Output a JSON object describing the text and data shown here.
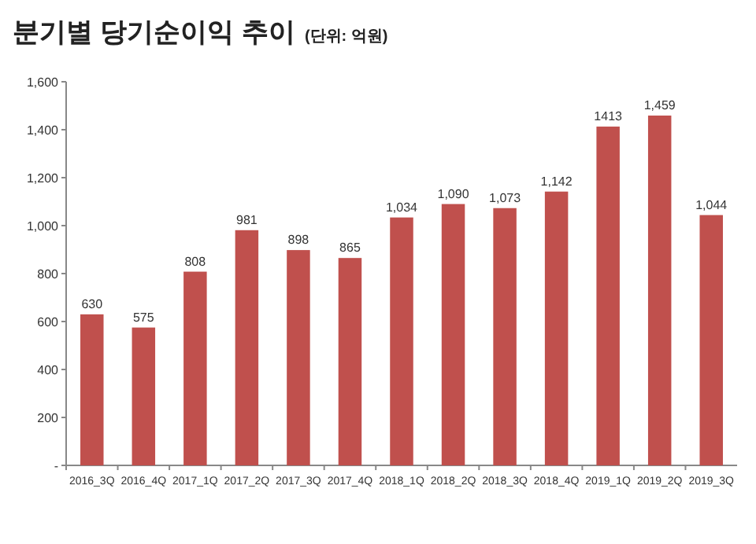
{
  "chart_data": {
    "type": "bar",
    "title": "분기별 당기순이익 추이",
    "subtitle": "(단위: 억원)",
    "categories": [
      "2016_3Q",
      "2016_4Q",
      "2017_1Q",
      "2017_2Q",
      "2017_3Q",
      "2017_4Q",
      "2018_1Q",
      "2018_2Q",
      "2018_3Q",
      "2018_4Q",
      "2019_1Q",
      "2019_2Q",
      "2019_3Q"
    ],
    "values": [
      630,
      575,
      808,
      981,
      898,
      865,
      1034,
      1090,
      1073,
      1142,
      1413,
      1459,
      1044
    ],
    "value_labels": [
      "630",
      "575",
      "808",
      "981",
      "898",
      "865",
      "1,034",
      "1,090",
      "1,073",
      "1,142",
      "1413",
      "1,459",
      "1,044"
    ],
    "color": "#c0504d",
    "ylim": [
      0,
      1600
    ],
    "yticks": [
      {
        "value": 0,
        "label": "-"
      },
      200,
      400,
      600,
      800,
      {
        "value": 1000,
        "label": "1,000"
      },
      {
        "value": 1200,
        "label": "1,200"
      },
      {
        "value": 1400,
        "label": "1,400"
      },
      {
        "value": 1600,
        "label": "1,600"
      }
    ],
    "grid": false
  }
}
